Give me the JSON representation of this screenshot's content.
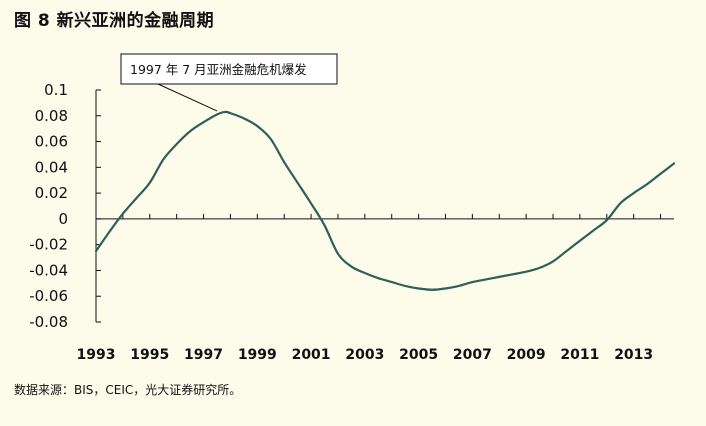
{
  "chart_data": {
    "type": "line",
    "title": "图 8  新兴亚洲的金融周期",
    "xlabel": "",
    "ylabel": "",
    "xlim": [
      1993,
      2014.5
    ],
    "ylim": [
      -0.08,
      0.1
    ],
    "yticks": [
      "0.1",
      "0.08",
      "0.06",
      "0.04",
      "0.02",
      "0",
      "-0.02",
      "-0.04",
      "-0.06",
      "-0.08"
    ],
    "xticks": [
      "1993",
      "1995",
      "1997",
      "1999",
      "2001",
      "2003",
      "2005",
      "2007",
      "2009",
      "2011",
      "2013"
    ],
    "grid": false,
    "line_color": "#2f5f5a",
    "series": [
      {
        "x": [
          1993.0,
          1993.5,
          1994.0,
          1994.5,
          1995.0,
          1995.5,
          1996.0,
          1996.5,
          1997.0,
          1997.5,
          1997.8,
          1998.0,
          1998.5,
          1999.0,
          1999.5,
          2000.0,
          2000.5,
          2001.0,
          2001.5,
          2002.0,
          2002.5,
          2003.0,
          2003.5,
          2004.0,
          2004.5,
          2005.0,
          2005.5,
          2006.0,
          2006.5,
          2007.0,
          2007.5,
          2008.0,
          2008.5,
          2009.0,
          2009.5,
          2010.0,
          2010.5,
          2011.0,
          2011.5,
          2012.0,
          2012.5,
          2013.0,
          2013.5,
          2014.0,
          2014.5
        ],
        "y": [
          -0.025,
          -0.01,
          0.004,
          0.016,
          0.028,
          0.046,
          0.058,
          0.068,
          0.075,
          0.081,
          0.083,
          0.082,
          0.078,
          0.072,
          0.062,
          0.044,
          0.028,
          0.012,
          -0.005,
          -0.027,
          -0.037,
          -0.042,
          -0.046,
          -0.049,
          -0.052,
          -0.054,
          -0.055,
          -0.054,
          -0.052,
          -0.049,
          -0.047,
          -0.045,
          -0.043,
          -0.041,
          -0.038,
          -0.033,
          -0.025,
          -0.017,
          -0.009,
          -0.001,
          0.012,
          0.02,
          0.027,
          0.035,
          0.043
        ]
      }
    ],
    "annotation": {
      "text": "1997 年 7 月亚洲金融危机爆发",
      "x": 1997.5,
      "y": 0.083
    },
    "source": "数据来源：BIS，CEIC，光大证券研究所。"
  }
}
